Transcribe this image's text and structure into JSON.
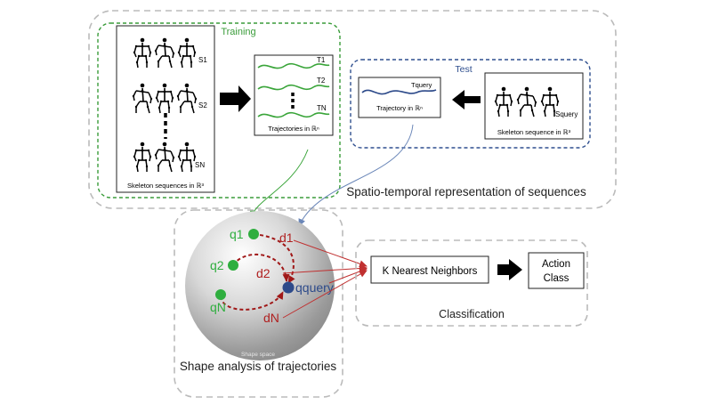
{
  "training": {
    "title": "Training",
    "skeleton_labels": [
      "S1",
      "S2",
      "SN"
    ],
    "skeleton_caption": "Skeleton sequences in ℝ³",
    "trajectory_labels": [
      "T1",
      "T2",
      "TN"
    ],
    "trajectory_caption": "Trajectories in ℝⁿ"
  },
  "test": {
    "title": "Test",
    "trajectory_label": "Tquery",
    "trajectory_caption": "Trajectory in ℝⁿ",
    "skeleton_label": "Squery",
    "skeleton_caption": "Skeleton sequence in ℝ³"
  },
  "spatio_temporal_caption": "Spatio-temporal representation of sequences",
  "shape": {
    "points": [
      "q1",
      "q2",
      "qN"
    ],
    "query_point": "qquery",
    "distances": [
      "d1",
      "d2",
      "dN"
    ],
    "sphere_caption": "Shape space",
    "caption": "Shape analysis of trajectories"
  },
  "classification": {
    "knn_label": "K Nearest Neighbors",
    "action_line1": "Action",
    "action_line2": "Class",
    "caption": "Classification"
  },
  "colors": {
    "training_green": "#3a9c3a",
    "test_blue": "#2f4f8f",
    "point_green": "#2fae3f",
    "query_blue": "#2d4a8a",
    "distance_red": "#b02020",
    "dashed_gray": "#bbbbbb"
  }
}
